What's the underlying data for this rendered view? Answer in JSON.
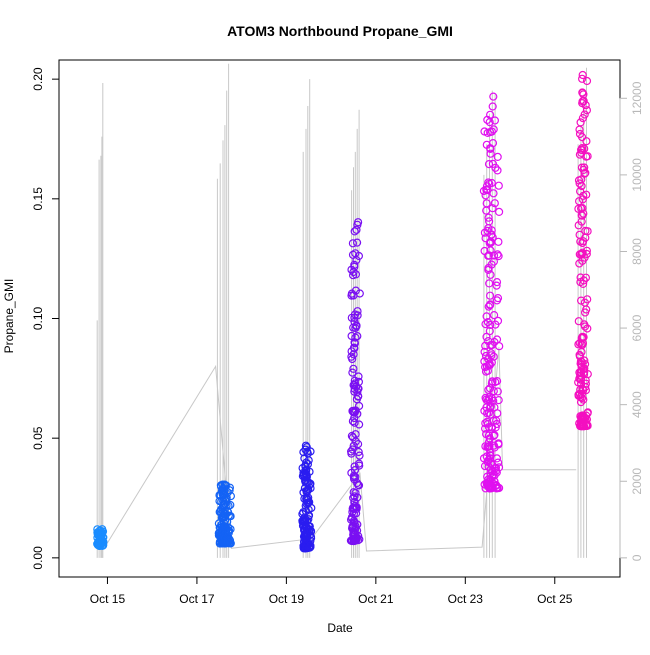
{
  "chart_data": {
    "type": "scatter",
    "title": "ATOM3 Northbound Propane_GMI",
    "xlabel": "Date",
    "ylabel": "Propane_GMI",
    "x_axis": {
      "type": "date",
      "range": [
        "2016-10-13T22:00",
        "2016-10-26T11:00"
      ],
      "ticks": [
        {
          "value": "2016-10-15",
          "label": "Oct 15"
        },
        {
          "value": "2016-10-17",
          "label": "Oct 17"
        },
        {
          "value": "2016-10-19",
          "label": "Oct 19"
        },
        {
          "value": "2016-10-21",
          "label": "Oct 21"
        },
        {
          "value": "2016-10-23",
          "label": "Oct 23"
        },
        {
          "value": "2016-10-25",
          "label": "Oct 25"
        }
      ]
    },
    "y_axis_left": {
      "range": [
        -0.008,
        0.208
      ],
      "ticks": [
        {
          "value": 0.0,
          "label": "0.00"
        },
        {
          "value": 0.05,
          "label": "0.05"
        },
        {
          "value": 0.1,
          "label": "0.10"
        },
        {
          "value": 0.15,
          "label": "0.15"
        },
        {
          "value": 0.2,
          "label": "0.20"
        }
      ]
    },
    "y_axis_right": {
      "range": [
        -500,
        13000
      ],
      "color": "#b8b8b8",
      "ticks": [
        {
          "value": 0,
          "label": "0"
        },
        {
          "value": 2000,
          "label": "2000"
        },
        {
          "value": 4000,
          "label": "4000"
        },
        {
          "value": 6000,
          "label": "6000"
        },
        {
          "value": 8000,
          "label": "8000"
        },
        {
          "value": 10000,
          "label": "10000"
        },
        {
          "value": 12000,
          "label": "12000"
        }
      ]
    },
    "grid": false,
    "legend": "none",
    "marker": "open-circle",
    "point_series": [
      {
        "color": "#1a8cff",
        "start": "2016-10-14T18:00",
        "end": "2016-10-14T22:00",
        "ymin": 0.005,
        "ymax": 0.012,
        "points": 70
      },
      {
        "color": "#1463f5",
        "start": "2016-10-17T11:00",
        "end": "2016-10-17T18:30",
        "ymin": 0.006,
        "ymax": 0.031,
        "points": 140
      },
      {
        "color": "#2a1df0",
        "start": "2016-10-19T08:00",
        "end": "2016-10-19T13:30",
        "ymin": 0.004,
        "ymax": 0.047,
        "points": 130
      },
      {
        "color": "#7a10f2",
        "start": "2016-10-20T10:00",
        "end": "2016-10-20T15:30",
        "ymin": 0.007,
        "ymax": 0.147,
        "points": 150
      },
      {
        "color": "#e010f0",
        "start": "2016-10-23T09:00",
        "end": "2016-10-23T18:30",
        "ymin": 0.029,
        "ymax": 0.194,
        "points": 220
      },
      {
        "color": "#f410c0",
        "start": "2016-10-25T12:00",
        "end": "2016-10-25T18:00",
        "ymin": 0.055,
        "ymax": 0.203,
        "points": 170
      }
    ],
    "line_series": {
      "axis": "right",
      "color": "#c8c8c8",
      "connectors": [
        {
          "x": "2016-10-14T22:00",
          "y": 230
        },
        {
          "x": "2016-10-17T10:00",
          "y": 5000
        },
        {
          "x": "2016-10-17T18:30",
          "y": 250
        },
        {
          "x": "2016-10-19T13:30",
          "y": 500
        },
        {
          "x": "2016-10-20T15:30",
          "y": 2200
        },
        {
          "x": "2016-10-20T19:00",
          "y": 180
        },
        {
          "x": "2016-10-23T09:00",
          "y": 280
        },
        {
          "x": "2016-10-23T18:00",
          "y": 5500
        },
        {
          "x": "2016-10-23T20:00",
          "y": 2300
        },
        {
          "x": "2016-10-25T11:30",
          "y": 2300
        }
      ],
      "spikes": [
        {
          "x": "2016-10-14T18:30",
          "y": 6200
        },
        {
          "x": "2016-10-14T19:30",
          "y": 10400
        },
        {
          "x": "2016-10-14T20:30",
          "y": 10500
        },
        {
          "x": "2016-10-14T21:00",
          "y": 11000
        },
        {
          "x": "2016-10-14T21:30",
          "y": 12400
        },
        {
          "x": "2016-10-17T11:00",
          "y": 9900
        },
        {
          "x": "2016-10-17T12:30",
          "y": 10300
        },
        {
          "x": "2016-10-17T14:00",
          "y": 10900
        },
        {
          "x": "2016-10-17T15:00",
          "y": 11300
        },
        {
          "x": "2016-10-17T16:00",
          "y": 12200
        },
        {
          "x": "2016-10-17T17:00",
          "y": 12900
        },
        {
          "x": "2016-10-19T09:00",
          "y": 10600
        },
        {
          "x": "2016-10-19T10:30",
          "y": 11200
        },
        {
          "x": "2016-10-19T11:30",
          "y": 11800
        },
        {
          "x": "2016-10-19T12:30",
          "y": 12500
        },
        {
          "x": "2016-10-20T11:00",
          "y": 9600
        },
        {
          "x": "2016-10-20T12:00",
          "y": 10200
        },
        {
          "x": "2016-10-20T13:00",
          "y": 10600
        },
        {
          "x": "2016-10-20T14:00",
          "y": 11200
        },
        {
          "x": "2016-10-20T15:00",
          "y": 11700
        },
        {
          "x": "2016-10-23T10:00",
          "y": 10000
        },
        {
          "x": "2016-10-23T11:30",
          "y": 10800
        },
        {
          "x": "2016-10-23T13:00",
          "y": 11600
        },
        {
          "x": "2016-10-23T14:30",
          "y": 12200
        },
        {
          "x": "2016-10-23T16:00",
          "y": 12100
        },
        {
          "x": "2016-10-25T12:30",
          "y": 10800
        },
        {
          "x": "2016-10-25T14:00",
          "y": 11300
        },
        {
          "x": "2016-10-25T15:30",
          "y": 12100
        },
        {
          "x": "2016-10-25T17:00",
          "y": 12800
        }
      ]
    }
  }
}
